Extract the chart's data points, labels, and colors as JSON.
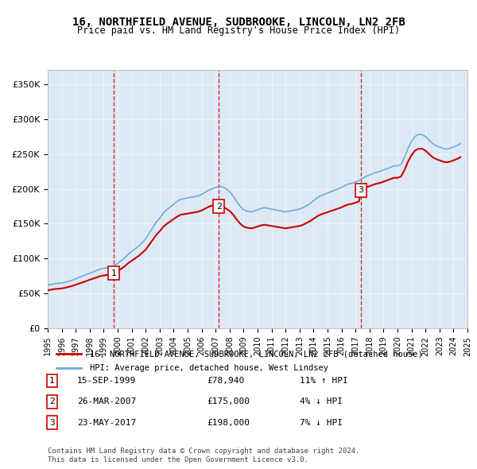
{
  "title": "16, NORTHFIELD AVENUE, SUDBROOKE, LINCOLN, LN2 2FB",
  "subtitle": "Price paid vs. HM Land Registry's House Price Index (HPI)",
  "xlabel": "",
  "ylabel": "",
  "ylim": [
    0,
    370000
  ],
  "yticks": [
    0,
    50000,
    100000,
    150000,
    200000,
    250000,
    300000,
    350000
  ],
  "ytick_labels": [
    "£0",
    "£50K",
    "£100K",
    "£150K",
    "£200K",
    "£250K",
    "£300K",
    "£350K"
  ],
  "background_color": "#dce9f5",
  "plot_bg_color": "#dce9f5",
  "hpi_color": "#6baed6",
  "price_color": "#cc0000",
  "vline_color": "#cc0000",
  "sale_dates": [
    "1999-09-15",
    "2007-03-26",
    "2017-05-23"
  ],
  "sale_prices": [
    78940,
    175000,
    198000
  ],
  "sale_labels": [
    "1",
    "2",
    "3"
  ],
  "sale_info": [
    {
      "label": "1",
      "date": "15-SEP-1999",
      "price": "£78,940",
      "hpi_diff": "11% ↑ HPI"
    },
    {
      "label": "2",
      "date": "26-MAR-2007",
      "price": "£175,000",
      "hpi_diff": "4% ↓ HPI"
    },
    {
      "label": "3",
      "date": "23-MAY-2017",
      "price": "£198,000",
      "hpi_diff": "7% ↓ HPI"
    }
  ],
  "legend_line1": "16, NORTHFIELD AVENUE, SUDBROOKE, LINCOLN, LN2 2FB (detached house)",
  "legend_line2": "HPI: Average price, detached house, West Lindsey",
  "footer": "Contains HM Land Registry data © Crown copyright and database right 2024.\nThis data is licensed under the Open Government Licence v3.0.",
  "hpi_data_x": [
    1995.0,
    1995.25,
    1995.5,
    1995.75,
    1996.0,
    1996.25,
    1996.5,
    1996.75,
    1997.0,
    1997.25,
    1997.5,
    1997.75,
    1998.0,
    1998.25,
    1998.5,
    1998.75,
    1999.0,
    1999.25,
    1999.5,
    1999.75,
    2000.0,
    2000.25,
    2000.5,
    2000.75,
    2001.0,
    2001.25,
    2001.5,
    2001.75,
    2002.0,
    2002.25,
    2002.5,
    2002.75,
    2003.0,
    2003.25,
    2003.5,
    2003.75,
    2004.0,
    2004.25,
    2004.5,
    2004.75,
    2005.0,
    2005.25,
    2005.5,
    2005.75,
    2006.0,
    2006.25,
    2006.5,
    2006.75,
    2007.0,
    2007.25,
    2007.5,
    2007.75,
    2008.0,
    2008.25,
    2008.5,
    2008.75,
    2009.0,
    2009.25,
    2009.5,
    2009.75,
    2010.0,
    2010.25,
    2010.5,
    2010.75,
    2011.0,
    2011.25,
    2011.5,
    2011.75,
    2012.0,
    2012.25,
    2012.5,
    2012.75,
    2013.0,
    2013.25,
    2013.5,
    2013.75,
    2014.0,
    2014.25,
    2014.5,
    2014.75,
    2015.0,
    2015.25,
    2015.5,
    2015.75,
    2016.0,
    2016.25,
    2016.5,
    2016.75,
    2017.0,
    2017.25,
    2017.5,
    2017.75,
    2018.0,
    2018.25,
    2018.5,
    2018.75,
    2019.0,
    2019.25,
    2019.5,
    2019.75,
    2020.0,
    2020.25,
    2020.5,
    2020.75,
    2021.0,
    2021.25,
    2021.5,
    2021.75,
    2022.0,
    2022.25,
    2022.5,
    2022.75,
    2023.0,
    2023.25,
    2023.5,
    2023.75,
    2024.0,
    2024.25,
    2024.5
  ],
  "hpi_data_y": [
    62000,
    63000,
    64000,
    64500,
    65000,
    66000,
    67500,
    69000,
    71000,
    73000,
    75000,
    77000,
    79000,
    81000,
    83000,
    85000,
    86000,
    87000,
    88000,
    90000,
    93000,
    97000,
    101000,
    106000,
    110000,
    114000,
    118000,
    123000,
    128000,
    136000,
    144000,
    152000,
    158000,
    165000,
    170000,
    174000,
    178000,
    182000,
    185000,
    186000,
    187000,
    188000,
    189000,
    190000,
    192000,
    195000,
    198000,
    200000,
    202000,
    204000,
    203000,
    200000,
    196000,
    190000,
    182000,
    175000,
    170000,
    168000,
    167000,
    168000,
    170000,
    172000,
    173000,
    172000,
    171000,
    170000,
    169000,
    168000,
    167000,
    168000,
    169000,
    170000,
    171000,
    173000,
    176000,
    179000,
    183000,
    187000,
    190000,
    192000,
    194000,
    196000,
    198000,
    200000,
    202000,
    205000,
    207000,
    208000,
    210000,
    212000,
    215000,
    218000,
    220000,
    222000,
    224000,
    225000,
    227000,
    229000,
    231000,
    233000,
    233000,
    235000,
    245000,
    258000,
    268000,
    275000,
    278000,
    278000,
    275000,
    270000,
    265000,
    262000,
    260000,
    258000,
    257000,
    258000,
    260000,
    262000,
    265000
  ],
  "price_line_x": [
    1999.71,
    2007.23,
    2017.39
  ],
  "price_line_y": [
    78940,
    175000,
    198000
  ],
  "xmin": 1995.0,
  "xmax": 2025.0
}
